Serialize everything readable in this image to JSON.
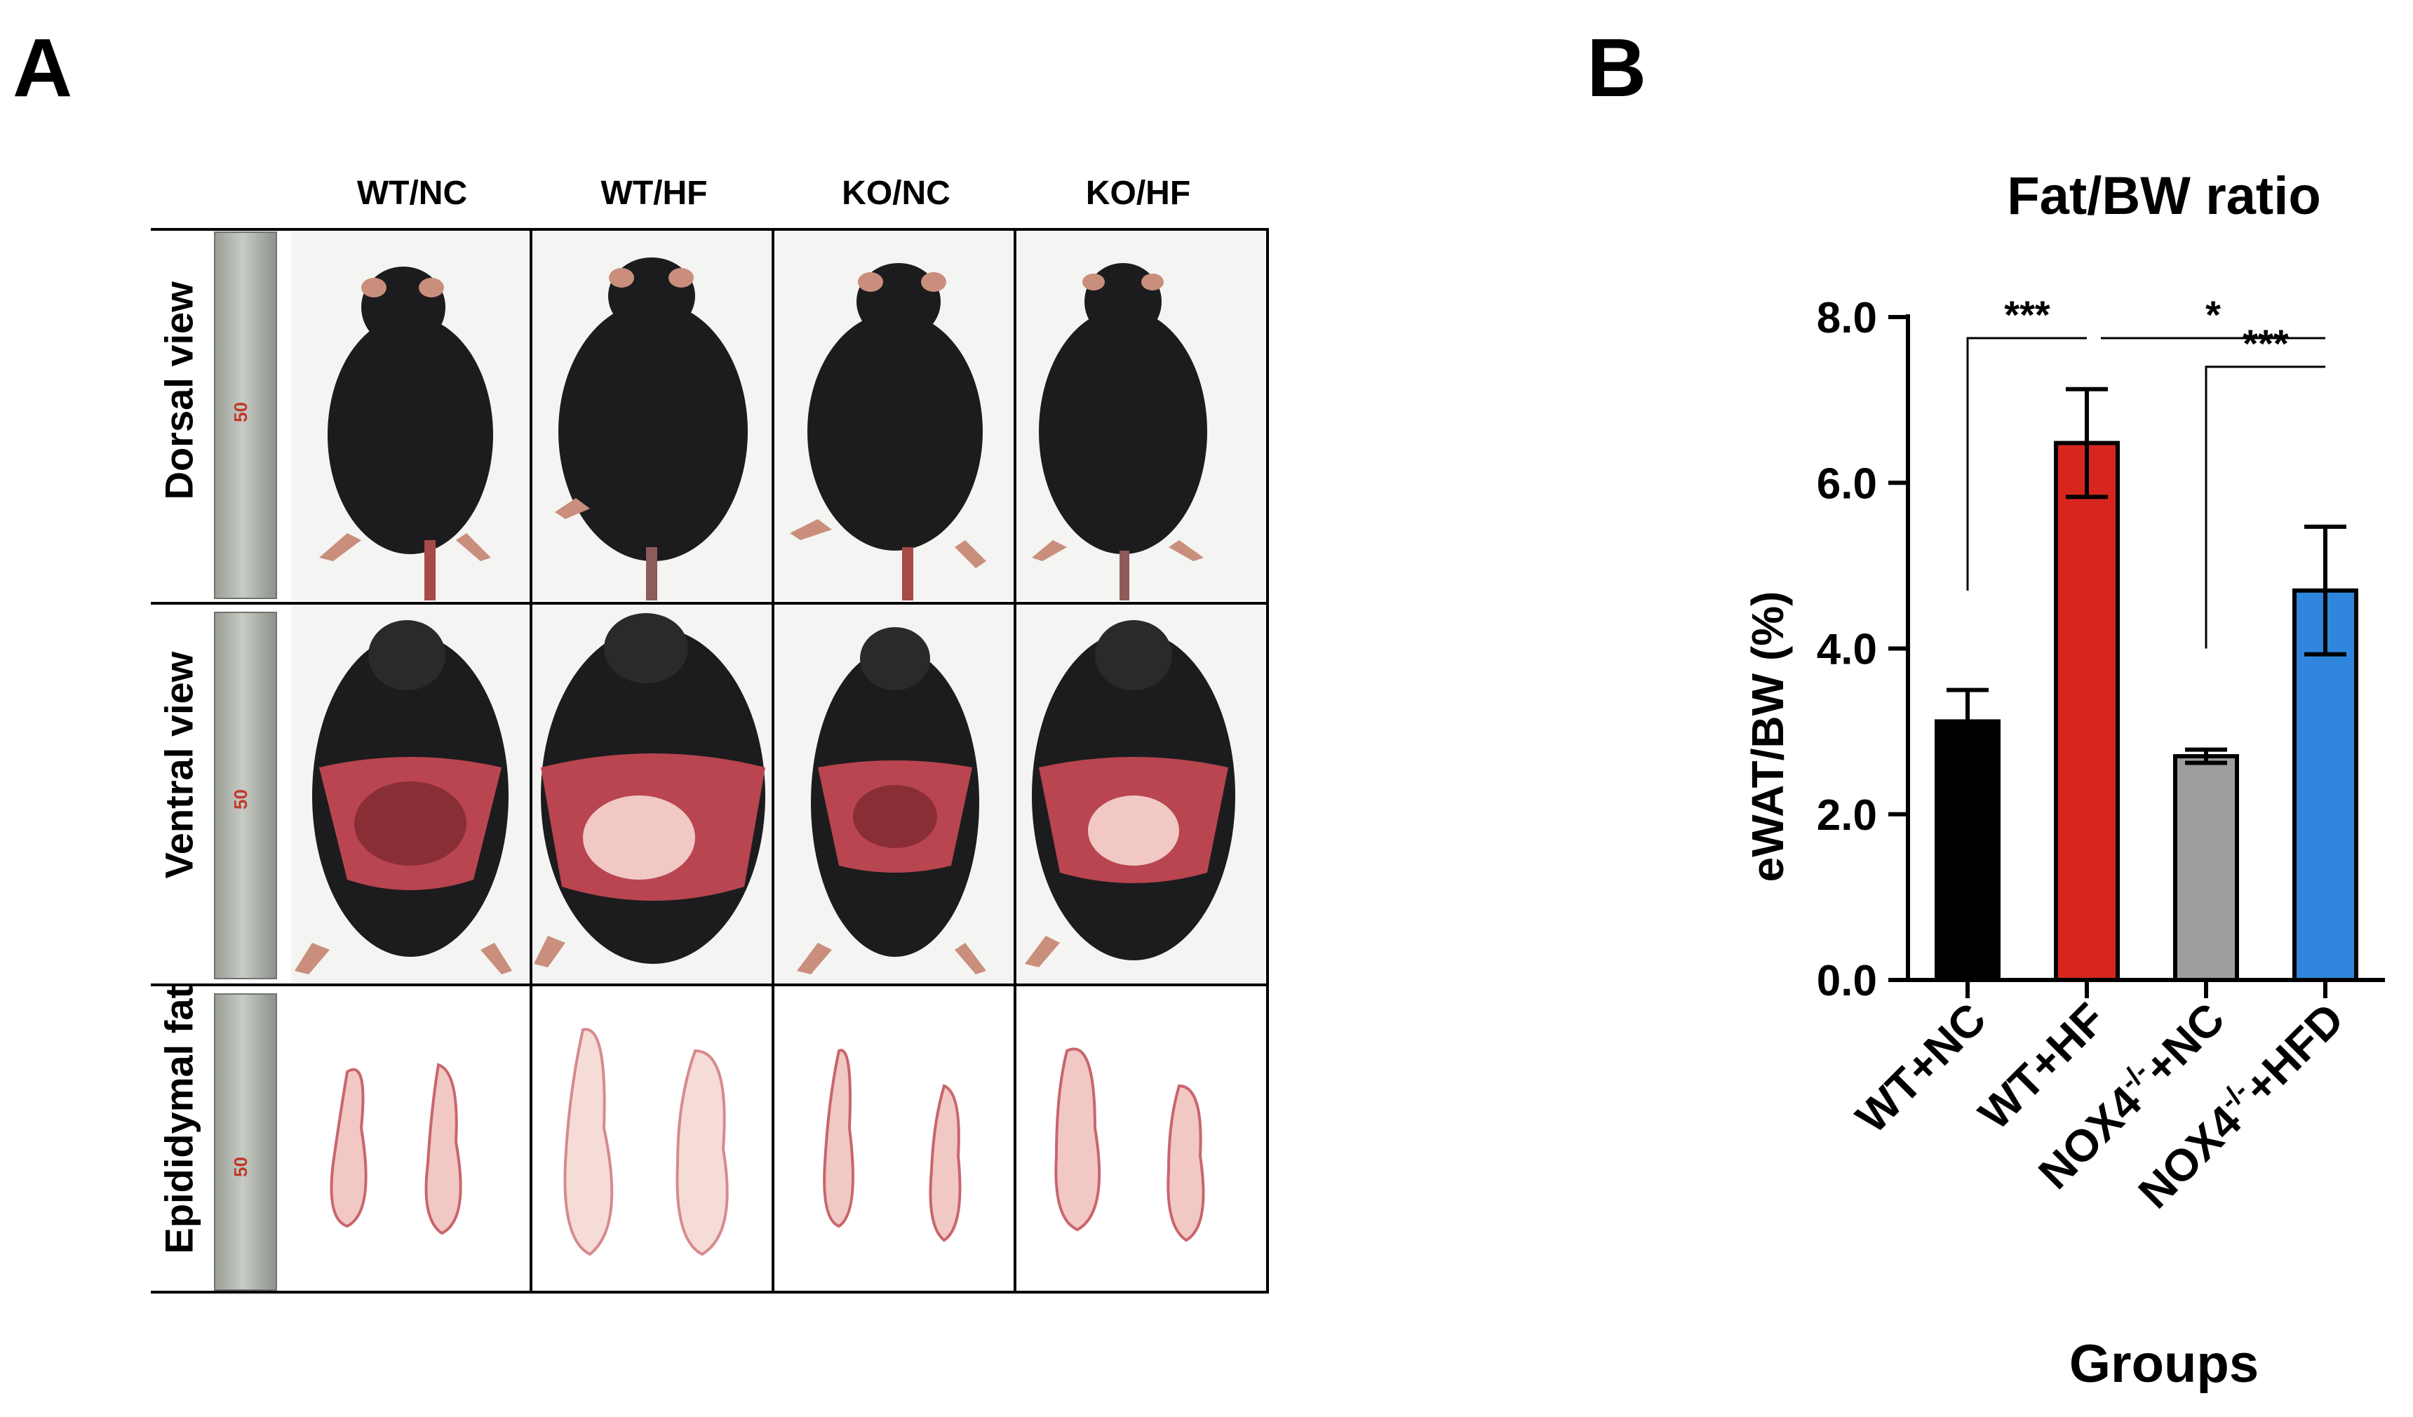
{
  "panels": {
    "a_letter": "A",
    "b_letter": "B"
  },
  "panel_a": {
    "column_headers": [
      "WT/NC",
      "WT/HF",
      "KO/NC",
      "KO/HF"
    ],
    "row_labels": [
      "Dorsal view",
      "Ventral view",
      "Epididymal fat"
    ],
    "ruler_mark": "50"
  },
  "colors": {
    "WT+NC": "#000000",
    "WT+HF": "#d7261e",
    "NOX4-/-+NC": "#9e9e9e",
    "NOX4-/-+HFD": "#2f86dc",
    "mouse_fur": "#1c1c1e",
    "tissue": "#b8454f",
    "fat": "#f1c8c4"
  },
  "chart_data": {
    "type": "bar",
    "title": "Fat/BW ratio",
    "xlabel": "Groups",
    "ylabel": "eWAT/BW (%)",
    "ylim": [
      0,
      8
    ],
    "yticks": [
      "0.0",
      "2.0",
      "4.0",
      "6.0",
      "8.0"
    ],
    "categories": [
      {
        "base": "WT+NC",
        "sup": "",
        "tail": ""
      },
      {
        "base": "WT+HF",
        "sup": "",
        "tail": ""
      },
      {
        "base": "NOX4",
        "sup": "-/-",
        "tail": "+NC"
      },
      {
        "base": "NOX4",
        "sup": "-/-",
        "tail": "+HFD"
      }
    ],
    "values": [
      3.12,
      6.48,
      2.7,
      4.7
    ],
    "errors": [
      0.38,
      0.65,
      0.08,
      0.77
    ],
    "bar_colors": [
      "#000000",
      "#d7261e",
      "#9e9e9e",
      "#2f86dc"
    ],
    "significance": [
      {
        "from": 0,
        "to": 1,
        "label": "***"
      },
      {
        "from": 1,
        "to": 3,
        "label": "*"
      },
      {
        "from": 2,
        "to": 3,
        "label": "***"
      }
    ]
  }
}
